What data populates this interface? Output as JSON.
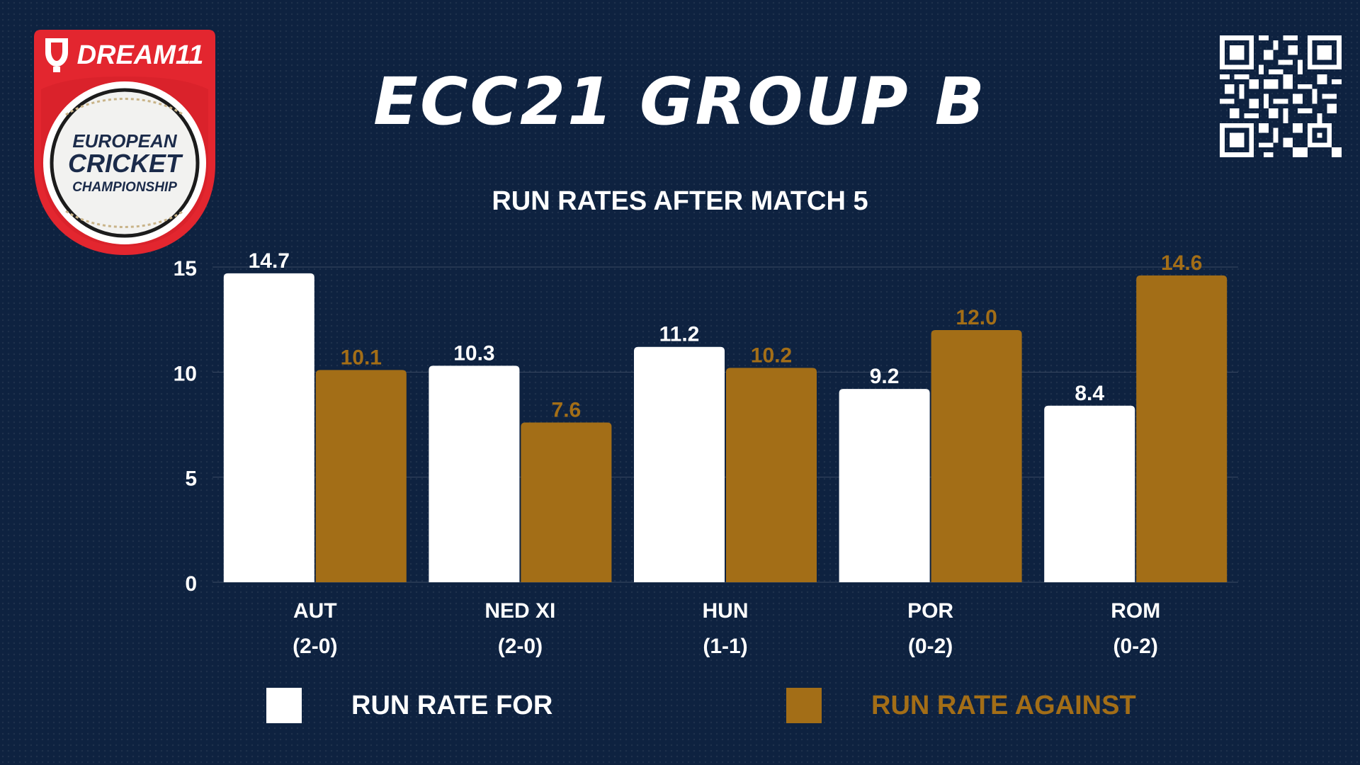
{
  "header": {
    "title": "ECC21 GROUP B",
    "subtitle": "RUN RATES AFTER MATCH 5"
  },
  "logo": {
    "brand": "DREAM11",
    "line1": "EUROPEAN",
    "line2": "CRICKET",
    "line3": "CHAMPIONSHIP"
  },
  "colors": {
    "background": "#0e2240",
    "run_rate_for": "#ffffff",
    "run_rate_against": "#a36e17",
    "logo_red": "#e3262f"
  },
  "qr_icon": "qr-code-icon",
  "chart_data": {
    "type": "bar",
    "title": "RUN RATES AFTER MATCH 5",
    "categories": [
      "AUT",
      "NED XI",
      "HUN",
      "POR",
      "ROM"
    ],
    "category_records": [
      "(2-0)",
      "(2-0)",
      "(1-1)",
      "(0-2)",
      "(0-2)"
    ],
    "series": [
      {
        "name": "RUN RATE FOR",
        "values": [
          14.7,
          10.3,
          11.2,
          9.2,
          8.4
        ]
      },
      {
        "name": "RUN RATE AGAINST",
        "values": [
          10.1,
          7.6,
          10.2,
          12.0,
          14.6
        ]
      }
    ],
    "y_ticks": [
      "0",
      "5",
      "10",
      "15"
    ],
    "ylim": [
      0,
      15
    ],
    "grid": true,
    "legend_position": "bottom",
    "xlabel": "",
    "ylabel": ""
  },
  "legend": {
    "for_label": "RUN RATE FOR",
    "against_label": "RUN RATE AGAINST"
  }
}
